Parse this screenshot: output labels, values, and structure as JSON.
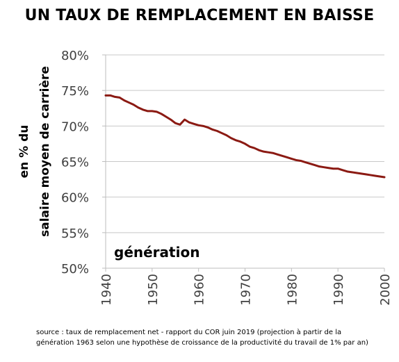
{
  "title": "UN TAUX DE REMPLACEMENT EN BAISSE",
  "source_lines": [
    "source : taux de remplacement net - rapport du COR juin 2019 (projection à partir de la",
    "génération 1963 selon une hypothèse de croissance de la productivité du travail de 1% par an)"
  ],
  "chart_data": {
    "type": "line",
    "ylabel_lines": [
      "en % du",
      "salaire moyen de carrière"
    ],
    "xlabel": "génération",
    "x_ticks": [
      "1940",
      "1950",
      "1960",
      "1970",
      "1980",
      "1990",
      "2000"
    ],
    "y_ticks": [
      "50%",
      "55%",
      "60%",
      "65%",
      "70%",
      "75%",
      "80%"
    ],
    "xlim": [
      1940,
      2000
    ],
    "ylim": [
      50,
      80
    ],
    "grid": true,
    "line_color": "#8b1a13",
    "x": [
      1940,
      1941,
      1942,
      1943,
      1944,
      1945,
      1946,
      1947,
      1948,
      1949,
      1950,
      1951,
      1952,
      1953,
      1954,
      1955,
      1956,
      1957,
      1958,
      1959,
      1960,
      1961,
      1962,
      1963,
      1964,
      1965,
      1966,
      1967,
      1968,
      1969,
      1970,
      1971,
      1972,
      1973,
      1974,
      1975,
      1976,
      1977,
      1978,
      1979,
      1980,
      1981,
      1982,
      1983,
      1984,
      1985,
      1986,
      1987,
      1988,
      1989,
      1990,
      1991,
      1992,
      1993,
      1994,
      1995,
      1996,
      1997,
      1998,
      1999,
      2000
    ],
    "values": [
      74.3,
      74.3,
      74.1,
      74.0,
      73.6,
      73.3,
      73.0,
      72.6,
      72.3,
      72.1,
      72.1,
      72.0,
      71.7,
      71.3,
      70.9,
      70.4,
      70.2,
      70.9,
      70.5,
      70.3,
      70.1,
      70.0,
      69.8,
      69.5,
      69.3,
      69.0,
      68.7,
      68.3,
      68.0,
      67.8,
      67.5,
      67.1,
      66.9,
      66.6,
      66.4,
      66.3,
      66.2,
      66.0,
      65.8,
      65.6,
      65.4,
      65.2,
      65.1,
      64.9,
      64.7,
      64.5,
      64.3,
      64.2,
      64.1,
      64.0,
      64.0,
      63.8,
      63.6,
      63.5,
      63.4,
      63.3,
      63.2,
      63.1,
      63.0,
      62.9,
      62.8
    ]
  }
}
